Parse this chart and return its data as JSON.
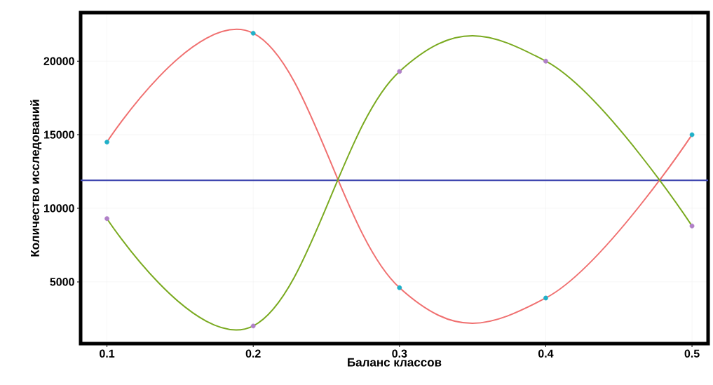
{
  "chart_data": {
    "type": "line",
    "xlabel": "Баланс классов",
    "ylabel": "Количество исследований",
    "x": [
      0.1,
      0.2,
      0.3,
      0.4,
      0.5
    ],
    "series": [
      {
        "color": "#f07070",
        "values": [
          14500,
          21900,
          4600,
          3900,
          15000
        ]
      },
      {
        "color": "#7aaa20",
        "values": [
          9300,
          2000,
          19300,
          20000,
          8800
        ]
      },
      {
        "type": "scatter",
        "color": "#20b0c8",
        "values": [
          14500,
          21900,
          4600,
          3900,
          15000
        ]
      },
      {
        "type": "scatter",
        "color": "#b080c8",
        "values": [
          9300,
          2000,
          19300,
          20000,
          8800
        ]
      }
    ],
    "xlim": [
      0.082,
      0.511
    ],
    "ylim": [
      800,
      23300
    ],
    "xticks": [
      0.1,
      0.2,
      0.3,
      0.4,
      0.5
    ],
    "yticks": [
      5000,
      10000,
      15000,
      20000
    ],
    "ref_lines": [
      {
        "axis": "y",
        "value": 11900,
        "color": "#4048b0"
      }
    ],
    "grid": true
  }
}
